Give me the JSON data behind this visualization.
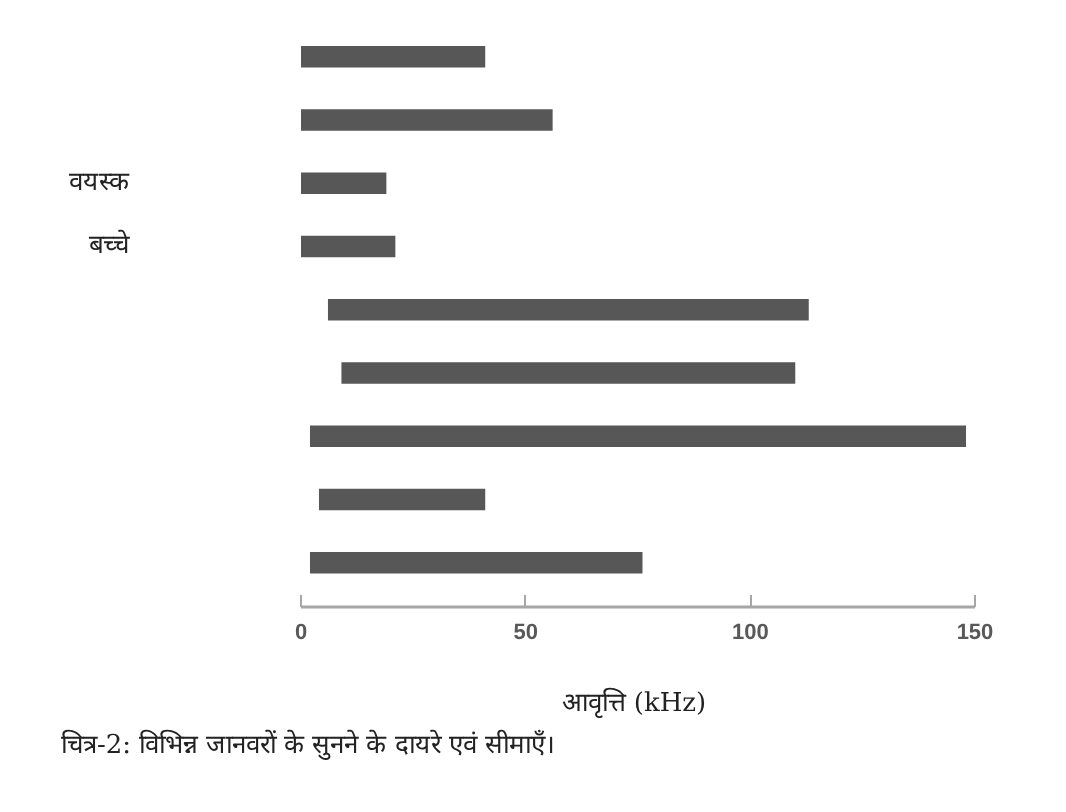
{
  "chart_data": {
    "type": "bar",
    "orientation": "horizontal",
    "categories": [
      null,
      null,
      "वयस्क",
      "बच्चे",
      null,
      null,
      null,
      null,
      null
    ],
    "base": [
      0,
      0,
      0,
      0,
      6,
      9,
      2,
      4,
      2
    ],
    "values": [
      41,
      56,
      19,
      21,
      107,
      101,
      146,
      37,
      74
    ],
    "color": "#575757",
    "xlim": [
      0,
      150
    ],
    "xticks": [
      0,
      50,
      100,
      150
    ],
    "xlabel": "आवृत्ति  (kHz)",
    "annotations": [
      "चित्र-2: विभिन्न जानवरों के सुनने के दायरे एवं सीमाएँ।"
    ]
  }
}
